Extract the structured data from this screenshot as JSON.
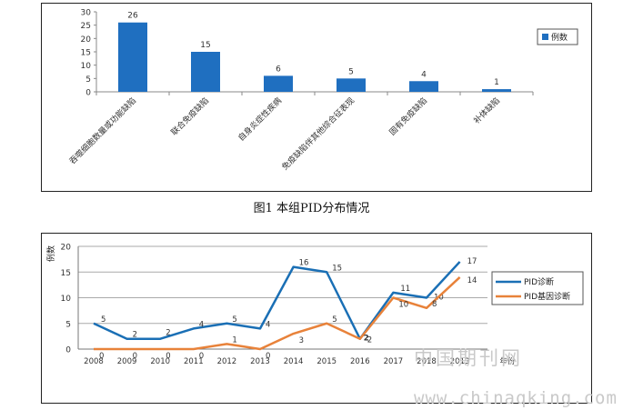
{
  "caption": "图1 本组PID分布情况",
  "watermark": {
    "cn": "中国期刊网",
    "url": "www.chinaqking.com"
  },
  "chart_data": [
    {
      "type": "bar",
      "categories": [
        "吞噬细胞数量或功能缺陷",
        "联合免疫缺陷",
        "自身炎症性疾病",
        "免疫缺陷伴其他综合征表现",
        "固有免疫缺陷",
        "补体缺陷"
      ],
      "values": [
        26,
        15,
        6,
        5,
        4,
        1
      ],
      "series": [
        {
          "name": "例数",
          "values": [
            26,
            15,
            6,
            5,
            4,
            1
          ]
        }
      ],
      "ylim": [
        0,
        30
      ],
      "yticks": [
        0,
        5,
        10,
        15,
        20,
        25,
        30
      ],
      "legend": "right",
      "grid": false,
      "colors": {
        "bar": "#1f6fc0"
      }
    },
    {
      "type": "line",
      "x": [
        "2008",
        "2009",
        "2010",
        "2011",
        "2012",
        "2013",
        "2014",
        "2015",
        "2016",
        "2017",
        "2018",
        "2019"
      ],
      "series": [
        {
          "name": "PID诊断",
          "values": [
            5,
            2,
            2,
            4,
            5,
            4,
            16,
            15,
            2,
            11,
            10,
            17
          ]
        },
        {
          "name": "PID基因诊断",
          "values": [
            0,
            0,
            0,
            0,
            1,
            0,
            3,
            5,
            2,
            10,
            8,
            14
          ]
        }
      ],
      "ylabel": "例数",
      "xlabel": "年份",
      "ylim": [
        0,
        20
      ],
      "yticks": [
        0,
        5,
        10,
        15,
        20
      ],
      "grid": true,
      "legend": "right",
      "colors": {
        "PID诊断": "#1a6fb5",
        "PID基因诊断": "#e8823a"
      }
    }
  ]
}
